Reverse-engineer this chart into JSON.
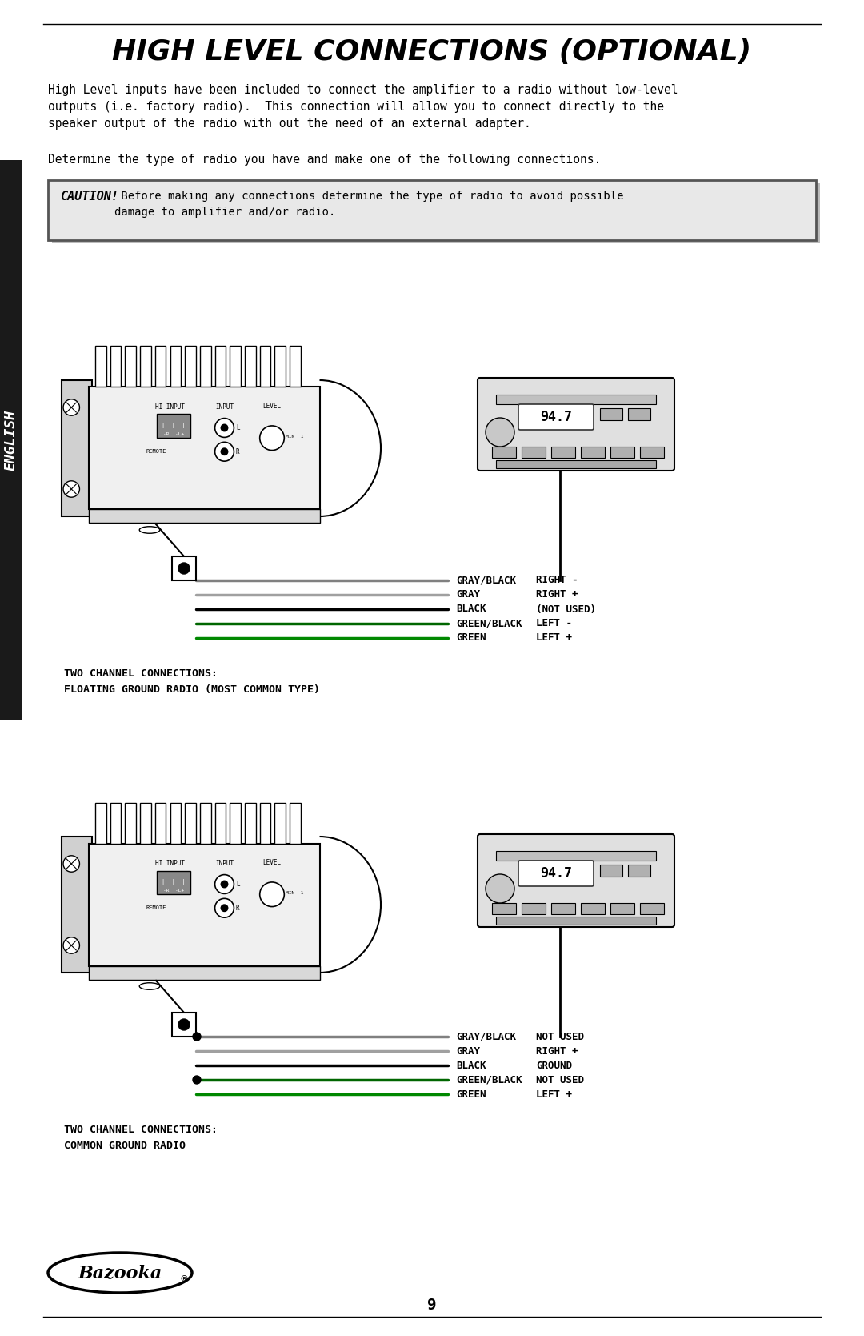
{
  "title": "HIGH LEVEL CONNECTIONS (OPTIONAL)",
  "title_H": "H",
  "title_rest": "IGH LEVEL CONNECTIONS (OPTIONAL)",
  "body_text1": "High Level inputs have been included to connect the amplifier to a radio without low-level\noutputs (i.e. factory radio).  This connection will allow you to connect directly to the\nspeaker output of the radio with out the need of an external adapter.",
  "body_text2": "Determine the type of radio you have and make one of the following connections.",
  "caution_bold": "CAUTION!",
  "caution_text": " Before making any connections determine the type of radio to avoid possible\ndamage to amplifier and/or radio.",
  "sidebar_text": "ENGLISH",
  "diagram1_label1": "GRAY/BLACK",
  "diagram1_label2": "GRAY",
  "diagram1_label3": "BLACK",
  "diagram1_label4": "GREEN/BLACK",
  "diagram1_label5": "GREEN",
  "diagram1_right1": "RIGHT -",
  "diagram1_right2": "RIGHT +",
  "diagram1_right3": "(NOT USED)",
  "diagram1_right4": "LEFT -",
  "diagram1_right5": "LEFT +",
  "diagram1_caption1": "TWO CHANNEL CONNECTIONS:",
  "diagram1_caption2": "FLOATING GROUND RADIO (MOST COMMON TYPE)",
  "diagram2_label1": "GRAY/BLACK",
  "diagram2_label2": "GRAY",
  "diagram2_label3": "BLACK",
  "diagram2_label4": "GREEN/BLACK",
  "diagram2_label5": "GREEN",
  "diagram2_right1": "NOT USED",
  "diagram2_right2": "RIGHT +",
  "diagram2_right3": "GROUND",
  "diagram2_right4": "NOT USED",
  "diagram2_right5": "LEFT +",
  "diagram2_has_dots1": true,
  "diagram2_has_dots3": false,
  "diagram2_has_dots4": true,
  "diagram2_caption1": "TWO CHANNEL CONNECTIONS:",
  "diagram2_caption2": "COMMON GROUND RADIO",
  "radio_display": "94.7",
  "page_number": "9",
  "bg_color": "#FFFFFF",
  "text_color": "#000000",
  "sidebar_bg": "#1a1a1a",
  "caution_bg": "#e8e8e8",
  "caution_border": "#555555"
}
